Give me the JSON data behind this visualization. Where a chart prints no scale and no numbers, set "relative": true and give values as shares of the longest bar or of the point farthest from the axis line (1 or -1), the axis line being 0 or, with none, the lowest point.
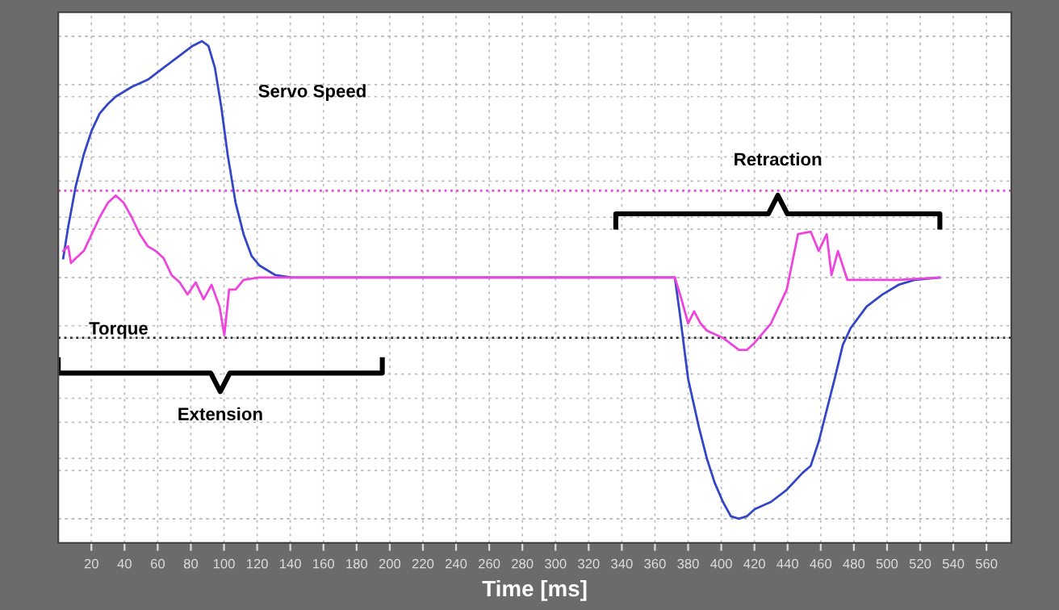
{
  "chart_data": {
    "type": "line",
    "xlabel": "Time [ms]",
    "relative": true,
    "xlim": [
      0,
      575
    ],
    "xticks": [
      20,
      40,
      60,
      80,
      100,
      120,
      140,
      160,
      180,
      200,
      220,
      240,
      260,
      280,
      300,
      320,
      340,
      360,
      380,
      400,
      420,
      440,
      460,
      480,
      500,
      520,
      540,
      560
    ],
    "grid": true,
    "line_style": "solid",
    "marker": "none",
    "series": [
      {
        "name": "Servo Speed",
        "color": "#3346c8",
        "x": [
          3,
          6,
          10.6,
          15.4,
          20.2,
          25,
          30,
          34.7,
          39.5,
          44.3,
          54,
          63.6,
          73.3,
          81,
          86.7,
          90.6,
          94.5,
          98.3,
          102.2,
          107,
          111.8,
          116.6,
          121.4,
          131,
          140.7,
          372,
          375,
          380,
          386.5,
          391.3,
          396,
          401,
          405.8,
          410.6,
          415.4,
          420.2,
          430,
          439.5,
          449,
          454,
          458.8,
          463.6,
          468.4,
          473.3,
          478,
          487.7,
          497.3,
          507,
          516.6,
          531.6
        ],
        "values": [
          0.08,
          0.21,
          0.38,
          0.51,
          0.61,
          0.68,
          0.72,
          0.75,
          0.77,
          0.79,
          0.82,
          0.87,
          0.92,
          0.96,
          0.98,
          0.96,
          0.87,
          0.71,
          0.51,
          0.31,
          0.18,
          0.09,
          0.05,
          0.01,
          0,
          0,
          -0.15,
          -0.42,
          -0.62,
          -0.75,
          -0.85,
          -0.93,
          -0.99,
          -1,
          -0.99,
          -0.96,
          -0.93,
          -0.88,
          -0.81,
          -0.78,
          -0.68,
          -0.55,
          -0.42,
          -0.28,
          -0.21,
          -0.12,
          -0.07,
          -0.03,
          -0.01,
          0
        ]
      },
      {
        "name": "Torque",
        "color": "#ee44dd",
        "x": [
          3,
          6,
          7.7,
          10.6,
          15.4,
          20.2,
          25,
          30,
          34.7,
          39.5,
          44.3,
          49.2,
          54,
          58.8,
          63.6,
          68.4,
          73.3,
          78,
          82.9,
          87.7,
          92.5,
          97.3,
          100.2,
          103.1,
          107,
          111.8,
          121.4,
          140.7,
          372,
          376,
          380,
          383.6,
          387.5,
          391.3,
          401,
          410.6,
          415.4,
          420.2,
          430,
          439.5,
          446.3,
          454,
          458.8,
          463.6,
          466.5,
          470.4,
          476.1,
          487.7,
          507,
          531.6
        ],
        "values": [
          0.11,
          0.13,
          0.06,
          0.08,
          0.11,
          0.18,
          0.25,
          0.31,
          0.34,
          0.31,
          0.25,
          0.18,
          0.13,
          0.11,
          0.08,
          0.01,
          -0.02,
          -0.07,
          -0.02,
          -0.09,
          -0.03,
          -0.12,
          -0.24,
          -0.05,
          -0.05,
          -0.01,
          0,
          0,
          0,
          -0.09,
          -0.19,
          -0.14,
          -0.19,
          -0.22,
          -0.25,
          -0.3,
          -0.3,
          -0.27,
          -0.19,
          -0.05,
          0.18,
          0.19,
          0.11,
          0.18,
          0.01,
          0.11,
          -0.01,
          -0.01,
          -0.01,
          0
        ]
      }
    ],
    "ref_lines": [
      {
        "axis": "y",
        "value": 0.36,
        "color": "#ee44dd",
        "line_style": "dotted"
      },
      {
        "axis": "y",
        "value": -0.25,
        "color": "#333333",
        "line_style": "dotted"
      }
    ],
    "annotations": [
      "Extension",
      "Retraction"
    ]
  }
}
